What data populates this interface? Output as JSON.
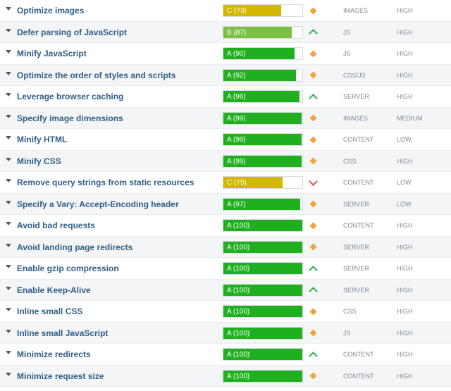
{
  "colors": {
    "grade_A": "#20b01f",
    "grade_B": "#7ac143",
    "grade_C": "#d4b700"
  },
  "recommendations": [
    {
      "title": "Optimize images",
      "grade_label": "C (73)",
      "grade": "C",
      "score": 73,
      "trend_icon": "diamond-icon",
      "type": "IMAGES",
      "priority": "HIGH"
    },
    {
      "title": "Defer parsing of JavaScript",
      "grade_label": "B (87)",
      "grade": "B",
      "score": 87,
      "trend_icon": "arrow-up-icon",
      "type": "JS",
      "priority": "HIGH"
    },
    {
      "title": "Minify JavaScript",
      "grade_label": "A (90)",
      "grade": "A",
      "score": 90,
      "trend_icon": "diamond-icon",
      "type": "JS",
      "priority": "HIGH"
    },
    {
      "title": "Optimize the order of styles and scripts",
      "grade_label": "A (92)",
      "grade": "A",
      "score": 92,
      "trend_icon": "diamond-icon",
      "type": "CSS/JS",
      "priority": "HIGH"
    },
    {
      "title": "Leverage browser caching",
      "grade_label": "A (96)",
      "grade": "A",
      "score": 96,
      "trend_icon": "arrow-up-icon",
      "type": "SERVER",
      "priority": "HIGH"
    },
    {
      "title": "Specify image dimensions",
      "grade_label": "A (99)",
      "grade": "A",
      "score": 99,
      "trend_icon": "diamond-icon",
      "type": "IMAGES",
      "priority": "MEDIUM"
    },
    {
      "title": "Minify HTML",
      "grade_label": "A (99)",
      "grade": "A",
      "score": 99,
      "trend_icon": "diamond-icon",
      "type": "CONTENT",
      "priority": "LOW"
    },
    {
      "title": "Minify CSS",
      "grade_label": "A (99)",
      "grade": "A",
      "score": 99,
      "trend_icon": "diamond-icon",
      "type": "CSS",
      "priority": "HIGH"
    },
    {
      "title": "Remove query strings from static resources",
      "grade_label": "C (75)",
      "grade": "C",
      "score": 75,
      "trend_icon": "arrow-down-icon",
      "type": "CONTENT",
      "priority": "LOW"
    },
    {
      "title": "Specify a Vary: Accept-Encoding header",
      "grade_label": "A (97)",
      "grade": "A",
      "score": 97,
      "trend_icon": "diamond-icon",
      "type": "SERVER",
      "priority": "LOW"
    },
    {
      "title": "Avoid bad requests",
      "grade_label": "A (100)",
      "grade": "A",
      "score": 100,
      "trend_icon": "diamond-icon",
      "type": "CONTENT",
      "priority": "HIGH"
    },
    {
      "title": "Avoid landing page redirects",
      "grade_label": "A (100)",
      "grade": "A",
      "score": 100,
      "trend_icon": "diamond-icon",
      "type": "SERVER",
      "priority": "HIGH"
    },
    {
      "title": "Enable gzip compression",
      "grade_label": "A (100)",
      "grade": "A",
      "score": 100,
      "trend_icon": "arrow-up-icon",
      "type": "SERVER",
      "priority": "HIGH"
    },
    {
      "title": "Enable Keep-Alive",
      "grade_label": "A (100)",
      "grade": "A",
      "score": 100,
      "trend_icon": "arrow-up-icon",
      "type": "SERVER",
      "priority": "HIGH"
    },
    {
      "title": "Inline small CSS",
      "grade_label": "A (100)",
      "grade": "A",
      "score": 100,
      "trend_icon": "diamond-icon",
      "type": "CSS",
      "priority": "HIGH"
    },
    {
      "title": "Inline small JavaScript",
      "grade_label": "A (100)",
      "grade": "A",
      "score": 100,
      "trend_icon": "diamond-icon",
      "type": "JS",
      "priority": "HIGH"
    },
    {
      "title": "Minimize redirects",
      "grade_label": "A (100)",
      "grade": "A",
      "score": 100,
      "trend_icon": "arrow-up-icon",
      "type": "CONTENT",
      "priority": "HIGH"
    },
    {
      "title": "Minimize request size",
      "grade_label": "A (100)",
      "grade": "A",
      "score": 100,
      "trend_icon": "diamond-icon",
      "type": "CONTENT",
      "priority": "HIGH"
    }
  ]
}
